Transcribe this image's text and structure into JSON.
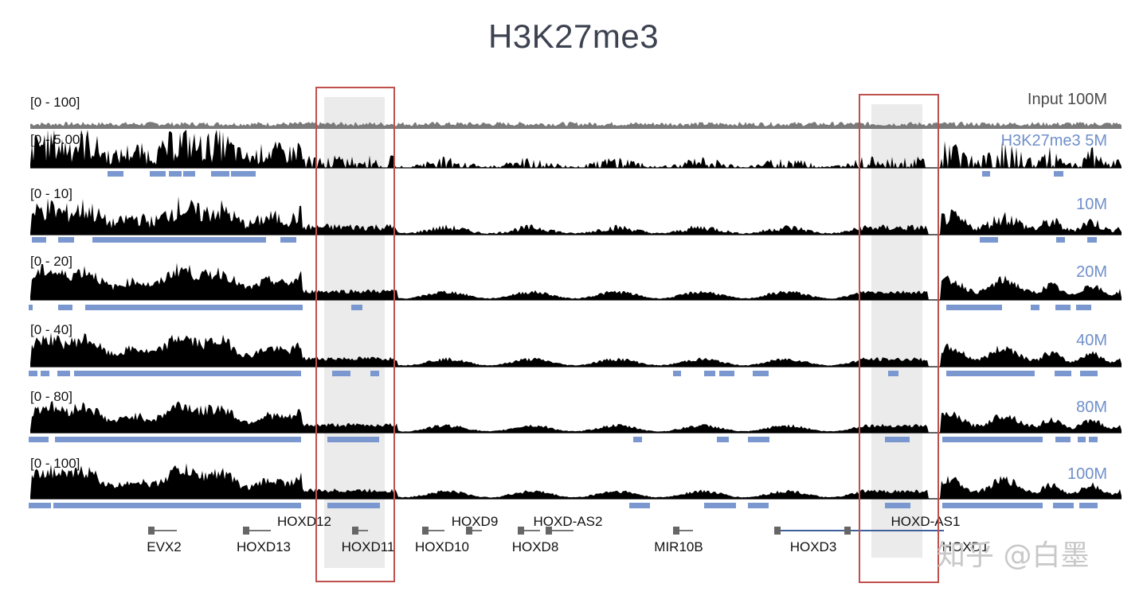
{
  "title": "H3K27me3",
  "tracks": [
    {
      "range": "[0 - 100]",
      "name": "Input 100M",
      "name_color": "#4a4a4a",
      "kind": "input",
      "amp": 0.6
    },
    {
      "range": "[0 - 5.00]",
      "name": "H3K27me3 5M",
      "name_color": "#6f8fca",
      "kind": "spiky",
      "amp": 1.0
    },
    {
      "range": "[0 - 10]",
      "name": "10M",
      "name_color": "#6f8fca",
      "kind": "mid",
      "amp": 1.0
    },
    {
      "range": "[0 - 20]",
      "name": "20M",
      "name_color": "#6f8fca",
      "kind": "smooth",
      "amp": 1.0
    },
    {
      "range": "[0 - 40]",
      "name": "40M",
      "name_color": "#6f8fca",
      "kind": "smooth",
      "amp": 0.95
    },
    {
      "range": "[0 - 80]",
      "name": "80M",
      "name_color": "#6f8fca",
      "kind": "smooth",
      "amp": 0.9
    },
    {
      "range": "[0 - 100]",
      "name": "100M",
      "name_color": "#6f8fca",
      "kind": "smooth",
      "amp": 0.9
    }
  ],
  "genes": [
    {
      "label": "EVX2"
    },
    {
      "label": "HOXD13"
    },
    {
      "label": "HOXD12"
    },
    {
      "label": "HOXD11"
    },
    {
      "label": "HOXD10"
    },
    {
      "label": "HOXD9"
    },
    {
      "label": "HOXD8"
    },
    {
      "label": "HOXD-AS2"
    },
    {
      "label": "MIR10B"
    },
    {
      "label": "HOXD3"
    },
    {
      "label": "HOXD-AS1"
    },
    {
      "label": "HOXD1"
    }
  ],
  "watermark": "知乎 @白墨",
  "colors": {
    "signal": "#000000",
    "peak": "#7a98cf",
    "highlight_box": "#c0504d",
    "highlight_fill": "#ebebeb",
    "input": "#7a7a7a"
  }
}
